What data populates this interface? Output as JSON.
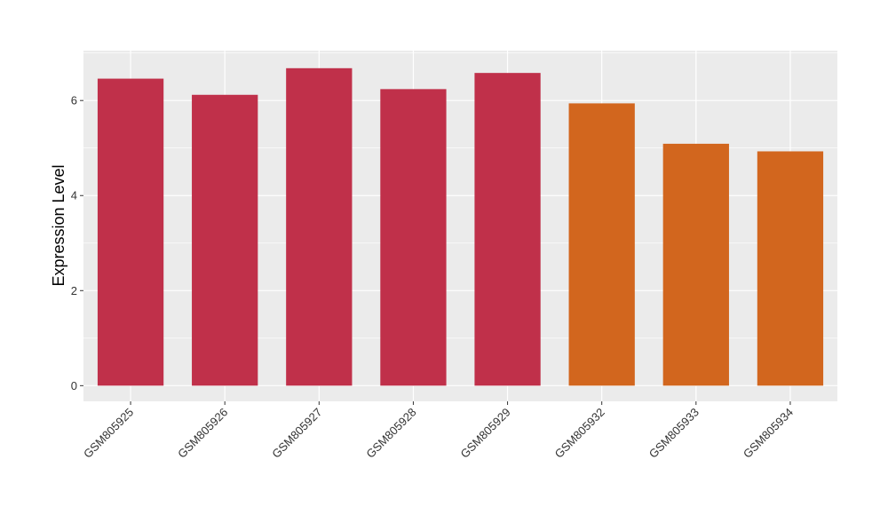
{
  "chart_data": {
    "type": "bar",
    "title": "",
    "xlabel": "",
    "ylabel": "Expression Level",
    "ylim": [
      -0.33,
      7.05
    ],
    "yticks": [
      0,
      2,
      4,
      6
    ],
    "grid": true,
    "legend": "none",
    "categories": [
      "GSM805925",
      "GSM805926",
      "GSM805927",
      "GSM805928",
      "GSM805929",
      "GSM805932",
      "GSM805933",
      "GSM805934"
    ],
    "values": [
      6.46,
      6.12,
      6.68,
      6.24,
      6.58,
      5.94,
      5.09,
      4.93
    ],
    "bar_colors": [
      "#c0304a",
      "#c0304a",
      "#c0304a",
      "#c0304a",
      "#c0304a",
      "#d2661e",
      "#d2661e",
      "#d2661e"
    ],
    "panel_background": "#ebebeb",
    "grid_color": "#ffffff"
  }
}
